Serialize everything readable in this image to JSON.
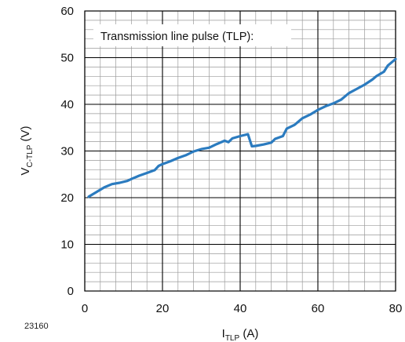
{
  "figure_id": "23160",
  "chart_data": {
    "type": "line",
    "annotation": "Transmission line pulse (TLP):",
    "xlabel": {
      "main": "I",
      "sub": "TLP",
      "unit": " (A)"
    },
    "ylabel": {
      "main": "V",
      "sub": "C-TLP",
      "unit": " (V)"
    },
    "xlim": [
      0,
      80
    ],
    "ylim": [
      0,
      60
    ],
    "x_ticks": [
      0,
      20,
      40,
      60,
      80
    ],
    "y_ticks": [
      0,
      10,
      20,
      30,
      40,
      50,
      60
    ],
    "x_minor_step": 4,
    "y_minor_step": 2,
    "grid": true,
    "color": "#2b7bbf",
    "series": [
      {
        "x": [
          1,
          3,
          5,
          7,
          9,
          11,
          12,
          14,
          16,
          18,
          19,
          20,
          22,
          24,
          26,
          28,
          30,
          32,
          34,
          36,
          37,
          38,
          40,
          42,
          43,
          44,
          46,
          48,
          49,
          51,
          52,
          54,
          56,
          58,
          60,
          62,
          64,
          66,
          68,
          70,
          72,
          74,
          75,
          77,
          78,
          80
        ],
        "y": [
          20.2,
          21.2,
          22.2,
          22.9,
          23.2,
          23.6,
          24.0,
          24.7,
          25.3,
          25.9,
          26.8,
          27.2,
          27.8,
          28.5,
          29.1,
          29.9,
          30.4,
          30.7,
          31.5,
          32.2,
          31.9,
          32.7,
          33.2,
          33.6,
          31.0,
          31.1,
          31.4,
          31.8,
          32.6,
          33.2,
          34.8,
          35.6,
          37.0,
          37.8,
          38.8,
          39.6,
          40.2,
          41.0,
          42.4,
          43.3,
          44.2,
          45.3,
          46.0,
          47.0,
          48.3,
          49.7
        ]
      }
    ]
  }
}
